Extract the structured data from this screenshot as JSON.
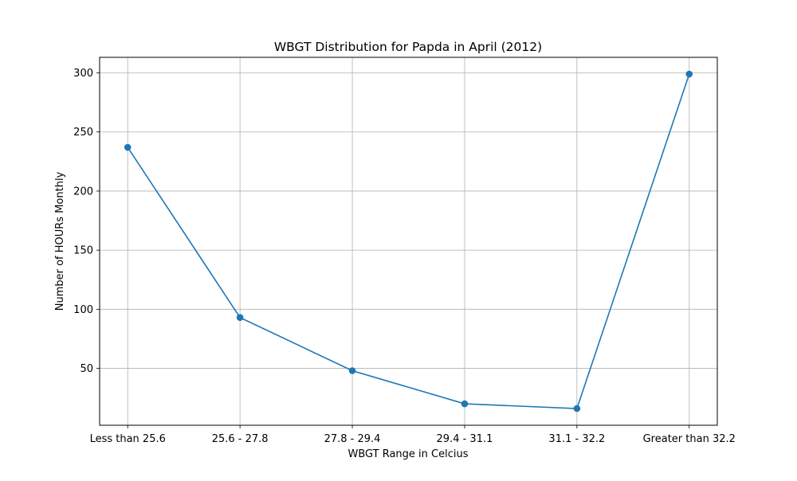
{
  "chart_data": {
    "type": "line",
    "title": "WBGT Distribution for Papda in April (2012)",
    "xlabel": "WBGT Range in Celcius",
    "ylabel": "Number of HOURs Monthly",
    "categories": [
      "Less than 25.6",
      "25.6 - 27.8",
      "27.8 - 29.4",
      "29.4 - 31.1",
      "31.1 - 32.2",
      "Greater than 32.2"
    ],
    "series": [
      {
        "values": [
          237,
          93,
          48,
          20,
          16,
          299
        ],
        "color": "#1f77b4",
        "marker": "circle"
      }
    ],
    "ylim": [
      1.85,
      313.15
    ],
    "yticks": [
      50,
      100,
      150,
      200,
      250,
      300
    ],
    "grid": true
  }
}
